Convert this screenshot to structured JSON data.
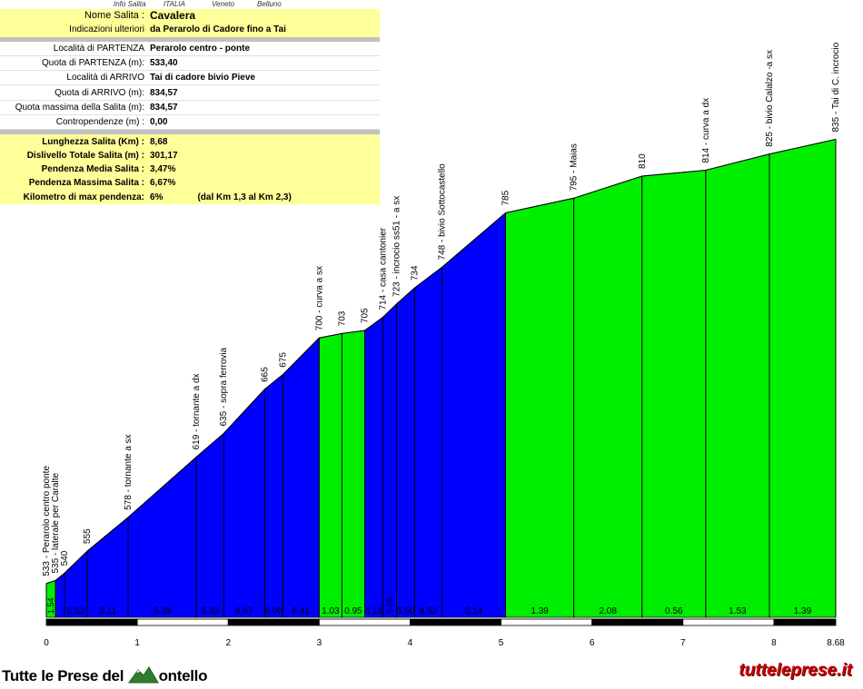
{
  "header": {
    "tag1": "Info Salita",
    "tag2": "ITALIA",
    "tag3": "Veneto",
    "tag4": "Belluno"
  },
  "info": {
    "rows_top": [
      {
        "key": "Nome Salita :",
        "val": "Cavalera"
      },
      {
        "key": "Indicazioni ulteriori",
        "val": "da Perarolo di Cadore fino a Tai"
      }
    ],
    "rows_mid": [
      {
        "key": "Località di PARTENZA",
        "val": "Perarolo centro - ponte"
      },
      {
        "key": "Quota di PARTENZA (m):",
        "val": "533,40"
      },
      {
        "key": "Località di ARRIVO",
        "val": "Tai di cadore bivio Pieve"
      },
      {
        "key": "Quota di ARRIVO (m):",
        "val": "834,57"
      },
      {
        "key": "Quota massima della Salita (m):",
        "val": "834,57"
      },
      {
        "key": "Contropendenze (m) :",
        "val": "0,00"
      }
    ],
    "rows_bot": [
      {
        "key": "Lunghezza Salita (Km) :",
        "val": "8,68"
      },
      {
        "key": "Dislivello Totale Salita (m) :",
        "val": "301,17"
      },
      {
        "key": "Pendenza Media Salita :",
        "val": "3,47%"
      },
      {
        "key": "Pendenza Massima Salita :",
        "val": "6,67%"
      },
      {
        "key": "Kilometro di max pendenza:",
        "val": "6%",
        "extra": "(dal Km 1,3 al Km 2,3)"
      }
    ]
  },
  "footer": {
    "left_a": "Tutte le Prese del",
    "left_b": "ontello",
    "right": "tutteleprese.it"
  },
  "colors": {
    "blue": "#0000ff",
    "green": "#00ee00",
    "bar_black": "#000000",
    "bar_white": "#ffffff"
  },
  "chart_data": {
    "type": "area",
    "x_unit": "km",
    "xlim": [
      0,
      8.68
    ],
    "x_ticks": [
      "0",
      "1",
      "2",
      "3",
      "4",
      "5",
      "6",
      "7",
      "8",
      "8.68"
    ],
    "points": [
      {
        "km": 0.0,
        "alt": 533,
        "label": "533 - Perarolo centro ponte"
      },
      {
        "km": 0.1,
        "alt": 535,
        "label": "535 - laterale per Caralte"
      },
      {
        "km": 0.2,
        "alt": 540,
        "label": "540"
      },
      {
        "km": 0.45,
        "alt": 555,
        "label": "555"
      },
      {
        "km": 0.9,
        "alt": 578,
        "label": "578 - tornante a sx"
      },
      {
        "km": 1.65,
        "alt": 619,
        "label": "619 - tornante a dx"
      },
      {
        "km": 1.95,
        "alt": 635,
        "label": "635 - sopra ferrovia"
      },
      {
        "km": 2.4,
        "alt": 665,
        "label": "665"
      },
      {
        "km": 2.6,
        "alt": 675,
        "label": "675"
      },
      {
        "km": 3.0,
        "alt": 700,
        "label": "700 - curva a sx"
      },
      {
        "km": 3.25,
        "alt": 703,
        "label": "703"
      },
      {
        "km": 3.5,
        "alt": 705,
        "label": "705"
      },
      {
        "km": 3.7,
        "alt": 714,
        "label": "714 - casa cantonier"
      },
      {
        "km": 3.85,
        "alt": 723,
        "label": "723 - incrocio ss51 - a sx"
      },
      {
        "km": 4.05,
        "alt": 734,
        "label": "734"
      },
      {
        "km": 4.35,
        "alt": 748,
        "label": "748 - bivio Sottocastello"
      },
      {
        "km": 5.05,
        "alt": 785,
        "label": "785"
      },
      {
        "km": 5.8,
        "alt": 795,
        "label": "795 - Maias"
      },
      {
        "km": 6.55,
        "alt": 810,
        "label": "810"
      },
      {
        "km": 7.25,
        "alt": 814,
        "label": "814 - curva a dx"
      },
      {
        "km": 7.95,
        "alt": 825,
        "label": "825 - bivio Calalzo -a sx"
      },
      {
        "km": 8.68,
        "alt": 835,
        "label": "835 - Tai di C. incrocio"
      }
    ],
    "segment_gradients": [
      "1.54",
      "",
      "5.52",
      "5.11",
      "5.39",
      "5.33",
      "6.67",
      "6.00",
      "6.41",
      "1.03",
      "0.95",
      "4.13",
      "5.26",
      "5.50",
      "4.52",
      "5.14",
      "1.39",
      "2.08",
      "0.56",
      "1.53",
      "1.39"
    ],
    "segment_colors": [
      "green",
      "blue",
      "blue",
      "blue",
      "blue",
      "blue",
      "blue",
      "blue",
      "blue",
      "green",
      "green",
      "blue",
      "blue",
      "blue",
      "blue",
      "blue",
      "green",
      "green",
      "green",
      "green",
      "green"
    ]
  }
}
